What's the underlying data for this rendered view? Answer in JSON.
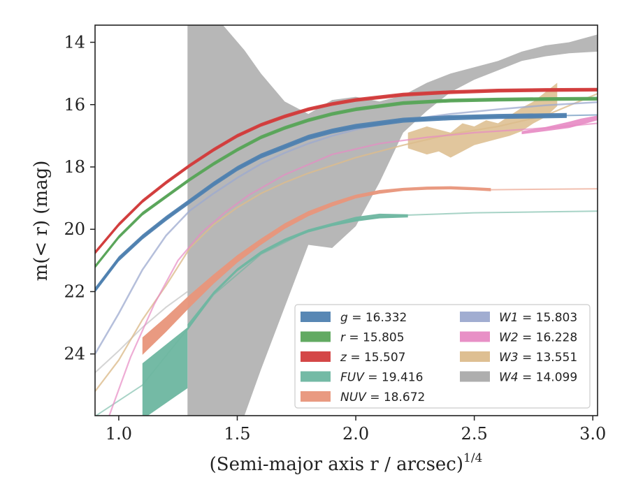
{
  "chart_data": {
    "type": "line",
    "xlabel": "(Semi-major axis r / arcsec)",
    "xlabel_superscript": "1/4",
    "ylabel": "m(< r) (mag)",
    "xlim": [
      0.9,
      3.02
    ],
    "ylim": [
      25.98,
      13.45
    ],
    "y_inverted": true,
    "x_ticks": [
      1.0,
      1.5,
      2.0,
      2.5,
      3.0
    ],
    "x_tick_labels": [
      "1.0",
      "1.5",
      "2.0",
      "2.5",
      "3.0"
    ],
    "y_ticks": [
      14,
      16,
      18,
      20,
      22,
      24
    ],
    "y_tick_labels": [
      "14",
      "16",
      "18",
      "20",
      "22",
      "24"
    ],
    "grid": false,
    "legend_position": "lower-right",
    "series": [
      {
        "name": "g = 16.332",
        "label_band": "g",
        "label_value": "16.332",
        "color": "#4f81b0",
        "x": [
          0.9,
          1.0,
          1.1,
          1.2,
          1.3,
          1.4,
          1.5,
          1.6,
          1.7,
          1.8,
          1.9,
          2.0,
          2.2,
          2.4,
          2.6,
          2.89
        ],
        "y": [
          21.95,
          20.95,
          20.25,
          19.65,
          19.1,
          18.55,
          18.05,
          17.65,
          17.35,
          17.05,
          16.85,
          16.7,
          16.5,
          16.42,
          16.38,
          16.35
        ],
        "x_ext": [
          2.89,
          3.02
        ],
        "y_ext": [
          16.35,
          16.33
        ],
        "half_width": 0.08
      },
      {
        "name": "r = 15.805",
        "label_band": "r",
        "label_value": "15.805",
        "color": "#5aa55a",
        "x": [
          0.9,
          1.0,
          1.1,
          1.2,
          1.3,
          1.4,
          1.5,
          1.6,
          1.7,
          1.8,
          1.9,
          2.0,
          2.2,
          2.4,
          2.6,
          2.8,
          3.02
        ],
        "y": [
          21.2,
          20.25,
          19.5,
          18.95,
          18.4,
          17.9,
          17.45,
          17.05,
          16.75,
          16.5,
          16.3,
          16.15,
          15.95,
          15.87,
          15.84,
          15.82,
          15.81
        ],
        "half_width": 0.06
      },
      {
        "name": "z = 15.507",
        "label_band": "z",
        "label_value": "15.507",
        "color": "#d23d3d",
        "x": [
          0.9,
          1.0,
          1.1,
          1.2,
          1.3,
          1.4,
          1.5,
          1.6,
          1.7,
          1.8,
          1.9,
          2.0,
          2.2,
          2.4,
          2.6,
          2.8,
          3.02
        ],
        "y": [
          20.75,
          19.85,
          19.1,
          18.5,
          17.95,
          17.45,
          17.0,
          16.65,
          16.38,
          16.15,
          15.98,
          15.85,
          15.68,
          15.6,
          15.55,
          15.53,
          15.52
        ],
        "half_width": 0.06
      },
      {
        "name": "FUV = 19.416",
        "label_band": "FUV",
        "label_value": "19.416",
        "color": "#6db6a0",
        "x": [
          1.29,
          1.4,
          1.5,
          1.6,
          1.7,
          1.8,
          1.9,
          2.0,
          2.1,
          2.22
        ],
        "y_low": [
          23.25,
          22.1,
          21.35,
          20.8,
          20.4,
          20.1,
          19.9,
          19.75,
          19.65,
          19.62
        ],
        "y_high": [
          23.05,
          22.0,
          21.25,
          20.7,
          20.3,
          20.0,
          19.8,
          19.6,
          19.5,
          19.52
        ],
        "x_ext": [
          0.9,
          1.1,
          1.29,
          1.4,
          1.6,
          1.8,
          2.0,
          2.2,
          2.5,
          2.8,
          3.02
        ],
        "y_ext": [
          26.0,
          25.0,
          23.2,
          22.1,
          20.8,
          20.05,
          19.7,
          19.55,
          19.47,
          19.44,
          19.42
        ],
        "x_box": [
          1.1,
          1.29
        ],
        "y_box_top": [
          24.3,
          23.15
        ],
        "y_box_bot": [
          26.1,
          25.1
        ]
      },
      {
        "name": "NUV = 18.672",
        "label_band": "NUV",
        "label_value": "18.672",
        "color": "#e8957a",
        "x": [
          1.1,
          1.2,
          1.3,
          1.4,
          1.5,
          1.6,
          1.7,
          1.8,
          1.9,
          2.0,
          2.1,
          2.2,
          2.3,
          2.4,
          2.5,
          2.57
        ],
        "y": [
          23.75,
          23.05,
          22.3,
          21.6,
          20.95,
          20.4,
          19.9,
          19.5,
          19.2,
          18.95,
          18.8,
          18.72,
          18.68,
          18.67,
          18.7,
          18.73
        ],
        "half_width": [
          0.28,
          0.24,
          0.2,
          0.15,
          0.12,
          0.1,
          0.09,
          0.08,
          0.07,
          0.06,
          0.06,
          0.05,
          0.05,
          0.05,
          0.05,
          0.05
        ],
        "x_ext": [
          2.57,
          3.02
        ],
        "y_ext": [
          18.73,
          18.7
        ]
      },
      {
        "name": "W1 = 15.803",
        "label_band": "W1",
        "label_value": "15.803",
        "color": "#9ca9cf",
        "x": [
          0.9,
          1.0,
          1.1,
          1.2,
          1.3,
          1.4,
          1.5,
          1.6,
          1.7,
          1.8,
          1.9,
          2.0,
          2.2,
          2.4,
          2.6,
          2.8,
          3.02
        ],
        "y": [
          24.0,
          22.7,
          21.3,
          20.2,
          19.4,
          18.85,
          18.35,
          17.9,
          17.55,
          17.25,
          17.0,
          16.8,
          16.5,
          16.3,
          16.15,
          16.02,
          15.92
        ],
        "half_width": 0.05
      },
      {
        "name": "W2 = 16.228",
        "label_band": "W2",
        "label_value": "16.228",
        "color": "#e78ac3",
        "x": [
          0.96,
          1.05,
          1.15,
          1.25,
          1.35,
          1.45,
          1.55,
          1.7,
          1.9,
          2.1,
          2.3,
          2.5,
          2.7,
          2.85,
          3.02
        ],
        "y": [
          25.98,
          24.1,
          22.4,
          21.0,
          20.1,
          19.45,
          18.9,
          18.25,
          17.6,
          17.25,
          17.05,
          16.9,
          16.8,
          16.72,
          16.6
        ],
        "x_band": [
          2.7,
          2.8,
          2.9,
          2.95,
          3.02
        ],
        "y_band_low": [
          16.95,
          16.85,
          16.75,
          16.65,
          16.5
        ],
        "y_band_high": [
          16.85,
          16.72,
          16.55,
          16.45,
          16.35
        ]
      },
      {
        "name": "W3 = 13.551",
        "label_band": "W3",
        "label_value": "13.551",
        "color": "#dcbc8c",
        "x": [
          0.9,
          1.0,
          1.1,
          1.2,
          1.3,
          1.4,
          1.5,
          1.6,
          1.7,
          1.8,
          1.9,
          2.0,
          2.2,
          2.4,
          2.6,
          2.8,
          3.02
        ],
        "y": [
          25.2,
          24.2,
          22.9,
          21.8,
          20.6,
          19.85,
          19.3,
          18.85,
          18.5,
          18.2,
          17.95,
          17.7,
          17.3,
          16.95,
          16.7,
          16.35,
          15.65
        ],
        "x_band": [
          2.22,
          2.3,
          2.35,
          2.4,
          2.45,
          2.5,
          2.55,
          2.6,
          2.65,
          2.7,
          2.75,
          2.8,
          2.85
        ],
        "y_band_low": [
          17.4,
          17.6,
          17.5,
          17.7,
          17.5,
          17.3,
          17.2,
          17.1,
          17.0,
          16.85,
          16.6,
          16.4,
          16.05
        ],
        "y_band_high": [
          16.9,
          16.7,
          16.8,
          16.9,
          16.6,
          16.7,
          16.5,
          16.6,
          16.35,
          16.1,
          15.9,
          15.6,
          15.3
        ]
      },
      {
        "name": "W4 = 14.099",
        "label_band": "W4",
        "label_value": "14.099",
        "color": "#aaaaaa",
        "x_band": [
          1.29,
          1.44,
          1.53,
          1.6,
          1.7,
          1.8,
          1.9,
          2.0,
          2.1,
          2.2,
          2.3,
          2.4,
          2.5,
          2.6,
          2.7,
          2.8,
          2.9,
          3.02
        ],
        "y_band_top": [
          13.45,
          13.45,
          14.25,
          15.0,
          15.9,
          16.3,
          15.85,
          15.75,
          15.9,
          15.7,
          15.3,
          15.0,
          14.8,
          14.6,
          14.3,
          14.1,
          14.0,
          13.75
        ],
        "y_band_bottom": [
          25.98,
          25.98,
          25.98,
          24.5,
          22.5,
          20.5,
          20.6,
          19.9,
          18.5,
          16.9,
          16.2,
          15.6,
          15.2,
          14.9,
          14.6,
          14.45,
          14.35,
          14.3
        ],
        "x_ext": [
          0.9,
          1.0,
          1.1,
          1.2,
          1.29
        ],
        "y_ext": [
          24.6,
          23.9,
          23.15,
          22.5,
          22.0
        ]
      }
    ],
    "legend_columns": [
      [
        "g = 16.332",
        "r = 15.805",
        "z = 15.507",
        "FUV = 19.416",
        "NUV = 18.672"
      ],
      [
        "W1 = 15.803",
        "W2 = 16.228",
        "W3 = 13.551",
        "W4 = 14.099"
      ]
    ]
  }
}
